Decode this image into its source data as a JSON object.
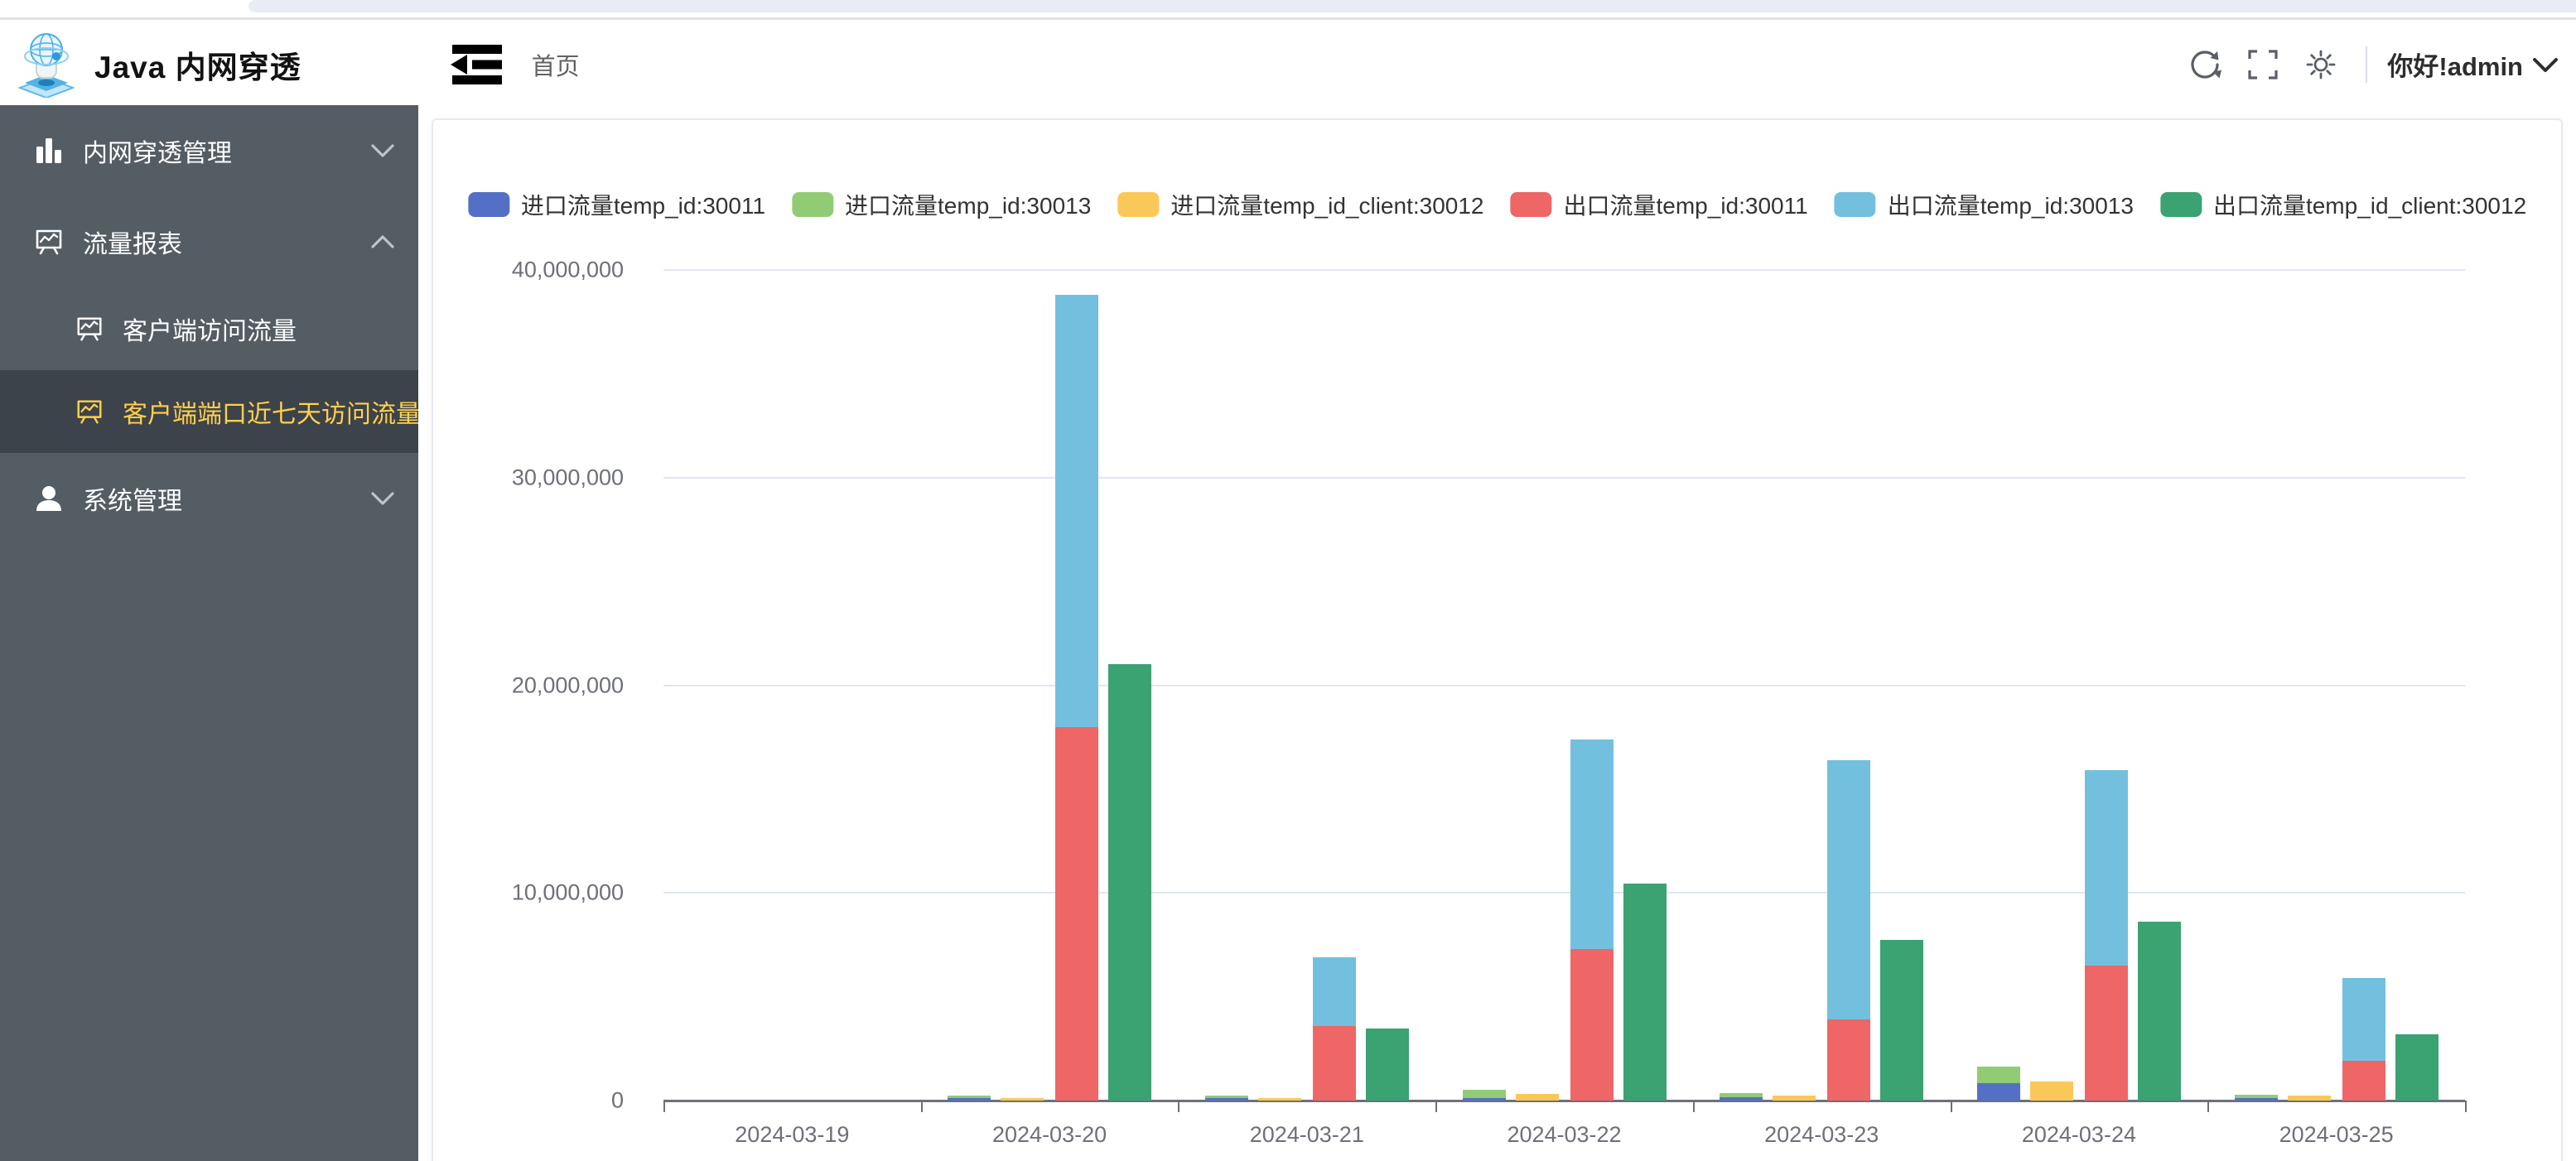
{
  "app": {
    "title": "Java 内网穿透"
  },
  "header": {
    "breadcrumb": "首页",
    "greeting": "你好!admin",
    "icons": [
      "refresh-icon",
      "fullscreen-icon",
      "theme-sun-icon"
    ]
  },
  "sidebar": {
    "colors": {
      "bg": "#545c64",
      "active_bg": "#3d434b",
      "text": "#ffffff",
      "active_text": "#ffd04b"
    },
    "items": [
      {
        "label": "内网穿透管理",
        "icon": "bar-chart-icon",
        "state": "collapsed"
      },
      {
        "label": "流量报表",
        "icon": "report-board-icon",
        "state": "expanded",
        "children": [
          {
            "label": "客户端访问流量",
            "icon": "report-board-icon",
            "active": false
          },
          {
            "label": "客户端端口近七天访问流量",
            "icon": "report-board-icon",
            "active": true
          }
        ]
      },
      {
        "label": "系统管理",
        "icon": "user-icon",
        "state": "collapsed"
      }
    ]
  },
  "chart_data": {
    "type": "bar",
    "title": "",
    "xlabel": "",
    "ylabel": "",
    "grid": true,
    "legend_position": "top",
    "ylim": [
      0,
      40000000
    ],
    "y_ticks": [
      {
        "value": 0,
        "label": "0"
      },
      {
        "value": 10000000,
        "label": "10,000,000"
      },
      {
        "value": 20000000,
        "label": "20,000,000"
      },
      {
        "value": 30000000,
        "label": "30,000,000"
      },
      {
        "value": 40000000,
        "label": "40,000,000"
      }
    ],
    "categories": [
      "2024-03-19",
      "2024-03-20",
      "2024-03-21",
      "2024-03-22",
      "2024-03-23",
      "2024-03-24",
      "2024-03-25"
    ],
    "series": [
      {
        "name": "进口流量temp_id:30011",
        "color": "#5470c6",
        "stack": "in-temp",
        "values": [
          0,
          100000,
          120000,
          130000,
          160000,
          850000,
          120000
        ]
      },
      {
        "name": "进口流量temp_id:30013",
        "color": "#91cc75",
        "stack": "in-temp",
        "values": [
          0,
          120000,
          100000,
          400000,
          200000,
          800000,
          160000
        ]
      },
      {
        "name": "进口流量temp_id_client:30012",
        "color": "#fac858",
        "stack": "in-client",
        "values": [
          0,
          130000,
          120000,
          300000,
          230000,
          900000,
          220000
        ]
      },
      {
        "name": "出口流量temp_id:30011",
        "color": "#ee6666",
        "stack": "out-temp",
        "values": [
          0,
          18000000,
          3600000,
          7300000,
          3900000,
          6500000,
          1900000
        ]
      },
      {
        "name": "出口流量temp_id:30013",
        "color": "#73c0de",
        "stack": "out-temp",
        "values": [
          0,
          20800000,
          3300000,
          10100000,
          12500000,
          9400000,
          4000000
        ]
      },
      {
        "name": "出口流量temp_id_client:30012",
        "color": "#3ba272",
        "stack": "out-client",
        "values": [
          0,
          21000000,
          3450000,
          10450000,
          7750000,
          8600000,
          3200000
        ]
      }
    ]
  }
}
